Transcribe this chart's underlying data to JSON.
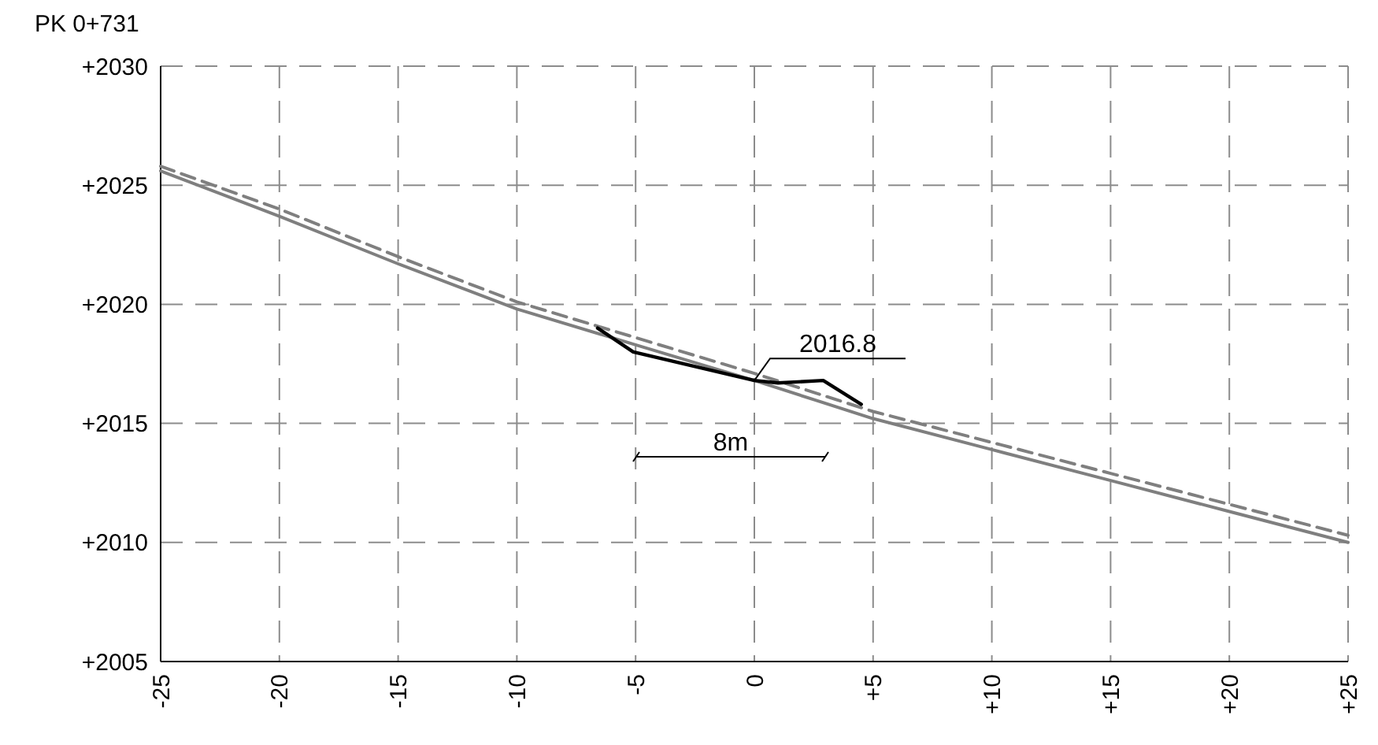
{
  "chart_data": {
    "type": "line",
    "title": "PK 0+731",
    "x": [
      -25,
      -20,
      -15,
      -10,
      -5,
      0,
      5,
      10,
      15,
      20,
      25
    ],
    "series": [
      {
        "color": "#7f7f7f",
        "line_style": "solid",
        "values": [
          2025.6,
          2023.7,
          2021.7,
          2019.8,
          2018.3,
          2016.8,
          2015.2,
          2013.9,
          2012.6,
          2011.3,
          2010.0
        ]
      },
      {
        "color": "#7f7f7f",
        "line_style": "dashed",
        "values": [
          2025.8,
          2024.0,
          2022.0,
          2020.1,
          2018.6,
          2017.1,
          2015.5,
          2014.2,
          2012.9,
          2011.6,
          2010.3
        ]
      },
      {
        "color": "#000000",
        "line_style": "solid",
        "x": [
          -6.6,
          -5.1,
          0,
          1,
          2.9,
          4.5
        ],
        "values": [
          2019.0,
          2018.0,
          2016.8,
          2016.7,
          2016.8,
          2015.8
        ]
      }
    ],
    "xlim": [
      -25,
      25
    ],
    "xticks": [
      -25,
      -20,
      -15,
      -10,
      -5,
      0,
      {
        "value": 5,
        "label": "+5"
      },
      {
        "value": 10,
        "label": "+10"
      },
      {
        "value": 15,
        "label": "+15"
      },
      {
        "value": 20,
        "label": "+20"
      },
      {
        "value": 25,
        "label": "+25"
      }
    ],
    "ylim": [
      2005,
      2030
    ],
    "yticks": [
      {
        "value": 2005,
        "label": "+2005"
      },
      {
        "value": 2010,
        "label": "+2010"
      },
      {
        "value": 2015,
        "label": "+2015"
      },
      {
        "value": 2020,
        "label": "+2020"
      },
      {
        "value": 2025,
        "label": "+2025"
      },
      {
        "value": 2030,
        "label": "+2030"
      }
    ],
    "grid": true,
    "marker": "none",
    "annotations": [
      {
        "text": "2016.8",
        "x": 0,
        "y": 2016.8
      },
      "8m"
    ]
  }
}
